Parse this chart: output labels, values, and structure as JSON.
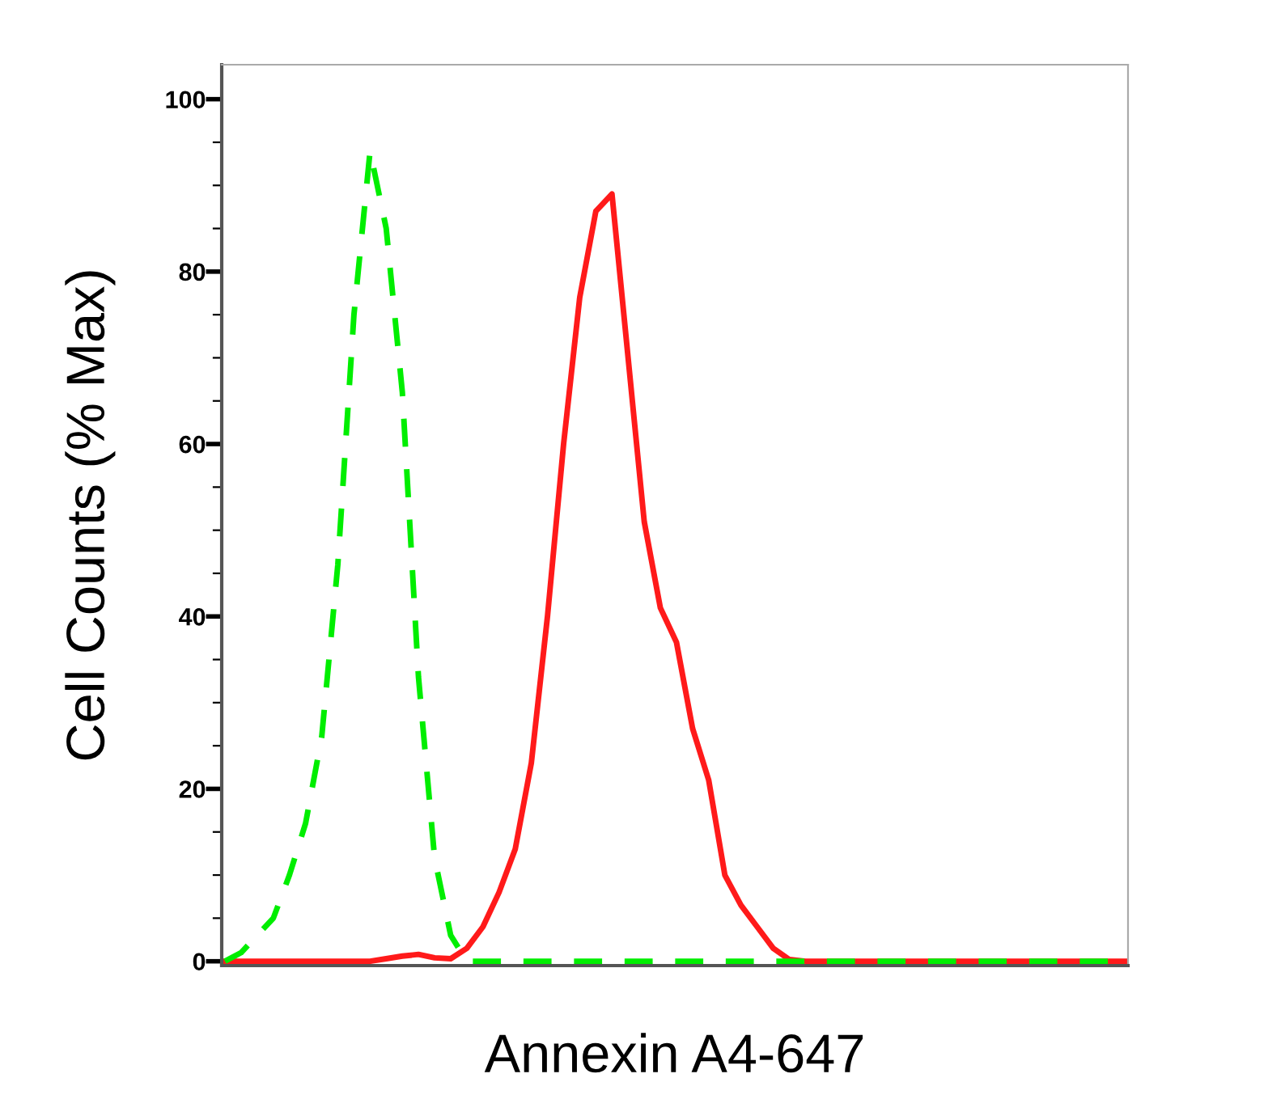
{
  "chart_data": {
    "type": "line",
    "xlabel": "Annexin A4-647",
    "ylabel": "Cell Counts (% Max)",
    "categories": [
      null,
      null,
      null,
      null,
      null,
      null,
      null,
      null,
      null,
      null,
      null,
      null,
      null,
      null,
      null,
      null,
      null,
      null,
      null,
      null,
      null,
      null,
      null,
      null,
      null,
      null,
      null,
      null,
      null,
      null,
      null,
      null,
      null,
      null,
      null,
      null,
      null,
      null,
      null,
      null,
      null,
      null,
      null,
      null,
      null,
      null,
      null,
      null,
      null,
      null,
      null,
      null,
      null,
      null,
      null,
      null,
      null
    ],
    "series": [
      {
        "color": "#00ee00",
        "line_style": "dashed",
        "values": [
          0,
          1,
          3,
          5,
          10,
          16,
          26,
          46,
          75,
          94,
          85,
          66,
          33,
          12,
          3,
          0,
          0,
          0,
          0,
          0,
          0,
          0,
          0,
          0,
          0,
          0,
          0,
          0,
          0,
          0,
          0,
          0,
          0,
          0,
          0,
          0,
          0,
          0,
          0,
          0,
          0,
          0,
          0,
          0,
          0,
          0,
          0,
          0,
          0,
          0,
          0,
          0,
          0,
          0,
          0,
          0,
          0
        ]
      },
      {
        "color": "#ff1a1a",
        "line_style": "solid",
        "values": [
          0,
          0,
          0,
          0,
          0,
          0,
          0,
          0,
          0,
          0,
          0.3,
          0.6,
          0.8,
          0.4,
          0.3,
          1.5,
          4,
          8,
          13,
          23,
          40,
          60,
          77,
          87,
          89,
          70,
          51,
          41,
          37,
          27,
          21,
          10,
          6.5,
          4,
          1.5,
          0.2,
          0,
          0,
          0,
          0,
          0,
          0,
          0,
          0,
          0,
          0,
          0,
          0,
          0,
          0,
          0,
          0,
          0,
          0,
          0,
          0,
          0
        ]
      }
    ],
    "ylim": [
      -0.5,
      104
    ],
    "yticks": [
      0,
      {
        "value": 5,
        "label": null
      },
      {
        "value": 10,
        "label": null
      },
      {
        "value": 15,
        "label": null
      },
      20,
      {
        "value": 25,
        "label": null
      },
      {
        "value": 30,
        "label": null
      },
      {
        "value": 35,
        "label": null
      },
      40,
      {
        "value": 45,
        "label": null
      },
      {
        "value": 50,
        "label": null
      },
      {
        "value": 55,
        "label": null
      },
      60,
      {
        "value": 65,
        "label": null
      },
      {
        "value": 70,
        "label": null
      },
      {
        "value": 75,
        "label": null
      },
      80,
      {
        "value": 85,
        "label": null
      },
      {
        "value": 90,
        "label": null
      },
      {
        "value": 95,
        "label": null
      },
      100
    ],
    "grid": false,
    "legend": false
  }
}
